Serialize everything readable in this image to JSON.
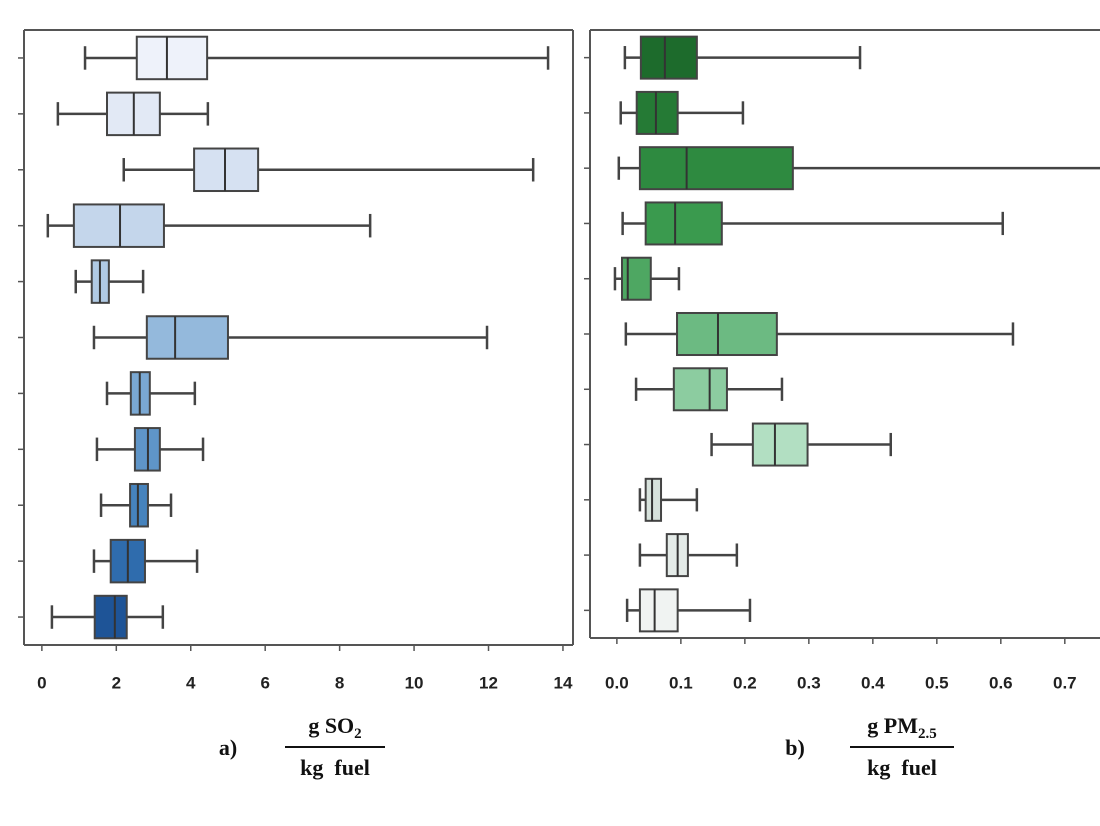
{
  "chart_data": [
    {
      "type": "box",
      "orientation": "horizontal",
      "categories": [
        null,
        null,
        null,
        null,
        null,
        null,
        null,
        null,
        null,
        null,
        null
      ],
      "xlim": [
        -0.48,
        14.27
      ],
      "xticks": [
        0,
        2,
        4,
        6,
        8,
        10,
        12,
        14
      ],
      "xlabel": {
        "panel": "a)",
        "numerator": "g SO",
        "numerator_sub": "2",
        "denominator": "kg  fuel"
      },
      "boxes": [
        {
          "color": "#eef2fa",
          "whisker_low": 1.16,
          "q1": 2.55,
          "median": 3.36,
          "q3": 4.44,
          "whisker_high": 13.6
        },
        {
          "color": "#e2e9f5",
          "whisker_low": 0.43,
          "q1": 1.75,
          "median": 2.47,
          "q3": 3.17,
          "whisker_high": 4.46
        },
        {
          "color": "#d6e1f2",
          "whisker_low": 2.2,
          "q1": 4.09,
          "median": 4.92,
          "q3": 5.81,
          "whisker_high": 13.2
        },
        {
          "color": "#c4d6eb",
          "whisker_low": 0.16,
          "q1": 0.86,
          "median": 2.1,
          "q3": 3.28,
          "whisker_high": 8.82
        },
        {
          "color": "#b0cae4",
          "whisker_low": 0.91,
          "q1": 1.34,
          "median": 1.56,
          "q3": 1.8,
          "whisker_high": 2.72
        },
        {
          "color": "#94b9dc",
          "whisker_low": 1.4,
          "q1": 2.82,
          "median": 3.58,
          "q3": 5.0,
          "whisker_high": 11.96
        },
        {
          "color": "#7aa8d3",
          "whisker_low": 1.75,
          "q1": 2.39,
          "median": 2.63,
          "q3": 2.9,
          "whisker_high": 4.11
        },
        {
          "color": "#5f95c8",
          "whisker_low": 1.48,
          "q1": 2.5,
          "median": 2.85,
          "q3": 3.17,
          "whisker_high": 4.33
        },
        {
          "color": "#4683bd",
          "whisker_low": 1.59,
          "q1": 2.37,
          "median": 2.58,
          "q3": 2.85,
          "whisker_high": 3.47
        },
        {
          "color": "#2f6cad",
          "whisker_low": 1.4,
          "q1": 1.85,
          "median": 2.31,
          "q3": 2.77,
          "whisker_high": 4.17
        },
        {
          "color": "#1e5497",
          "whisker_low": 0.27,
          "q1": 1.42,
          "median": 1.96,
          "q3": 2.28,
          "whisker_high": 3.25
        }
      ]
    },
    {
      "type": "box",
      "orientation": "horizontal",
      "categories": [
        null,
        null,
        null,
        null,
        null,
        null,
        null,
        null,
        null,
        null,
        null
      ],
      "xlim": [
        -0.042,
        0.755
      ],
      "xticks": [
        {
          "value": 0,
          "label": "0.0"
        },
        0.1,
        0.2,
        0.3,
        0.4,
        0.5,
        0.6,
        0.7
      ],
      "xlabel": {
        "panel": "b)",
        "numerator": "g PM",
        "numerator_sub": "2.5",
        "denominator": "kg  fuel"
      },
      "boxes": [
        {
          "color": "#1d6b2c",
          "whisker_low": 0.0125,
          "q1": 0.0375,
          "median": 0.075,
          "q3": 0.125,
          "whisker_high": 0.38
        },
        {
          "color": "#257a35",
          "whisker_low": 0.006,
          "q1": 0.031,
          "median": 0.061,
          "q3": 0.095,
          "whisker_high": 0.197
        },
        {
          "color": "#2e8a40",
          "whisker_low": 0.003,
          "q1": 0.036,
          "median": 0.109,
          "q3": 0.275,
          "whisker_high": 0.78
        },
        {
          "color": "#3a9a4e",
          "whisker_low": 0.009,
          "q1": 0.045,
          "median": 0.091,
          "q3": 0.164,
          "whisker_high": 0.603
        },
        {
          "color": "#4ea762",
          "whisker_low": -0.003,
          "q1": 0.008,
          "median": 0.017,
          "q3": 0.053,
          "whisker_high": 0.097
        },
        {
          "color": "#6cba82",
          "whisker_low": 0.014,
          "q1": 0.094,
          "median": 0.158,
          "q3": 0.25,
          "whisker_high": 0.619
        },
        {
          "color": "#8ccca0",
          "whisker_low": 0.03,
          "q1": 0.089,
          "median": 0.145,
          "q3": 0.172,
          "whisker_high": 0.258
        },
        {
          "color": "#b2dfc2",
          "whisker_low": 0.148,
          "q1": 0.2125,
          "median": 0.247,
          "q3": 0.298,
          "whisker_high": 0.428
        },
        {
          "color": "#d7e2dc",
          "whisker_low": 0.036,
          "q1": 0.045,
          "median": 0.055,
          "q3": 0.069,
          "whisker_high": 0.125
        },
        {
          "color": "#e4ebe8",
          "whisker_low": 0.036,
          "q1": 0.078,
          "median": 0.095,
          "q3": 0.111,
          "whisker_high": 0.1875
        },
        {
          "color": "#f0f3f2",
          "whisker_low": 0.016,
          "q1": 0.036,
          "median": 0.059,
          "q3": 0.095,
          "whisker_high": 0.208
        }
      ]
    }
  ]
}
